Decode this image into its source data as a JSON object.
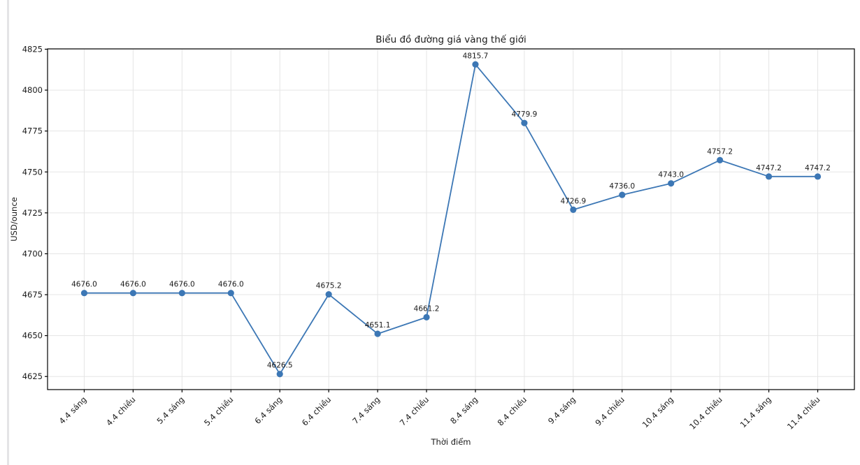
{
  "page": {
    "background": "#ffffff",
    "left_border_color": "#e4e4e6"
  },
  "chart_data": {
    "type": "line",
    "title": "Biểu đồ đường giá vàng thế giới",
    "xlabel": "Thời điểm",
    "ylabel": "USD/ounce",
    "categories": [
      "4.4 sáng",
      "4.4 chiều",
      "5.4 sáng",
      "5.4 chiều",
      "6.4 sáng",
      "6.4 chiều",
      "7.4 sáng",
      "7.4 chiều",
      "8.4 sáng",
      "8.4 chiều",
      "9.4 sáng",
      "9.4 chiều",
      "10.4 sáng",
      "10.4 chiều",
      "11.4 sáng",
      "11.4 chiều"
    ],
    "values": [
      4676.0,
      4676.0,
      4676.0,
      4676.0,
      4626.5,
      4675.2,
      4651.1,
      4661.2,
      4815.7,
      4779.9,
      4726.9,
      4736.0,
      4743.0,
      4757.2,
      4747.2,
      4747.2
    ],
    "point_labels": [
      "4676.0",
      "4676.0",
      "4676.0",
      "4676.0",
      "4626.5",
      "4675.2",
      "4651.1",
      "4661.2",
      "4815.7",
      "4779.9",
      "4726.9",
      "4736.0",
      "4743.0",
      "4757.2",
      "4747.2",
      "4747.2"
    ],
    "y_ticks": [
      4625,
      4650,
      4675,
      4700,
      4725,
      4750,
      4775,
      4800,
      4825
    ],
    "ylim": [
      4617.0,
      4825.2
    ],
    "x_tick_rotation": 45,
    "grid": true,
    "legend": "none",
    "line_color": "#3c77b5",
    "grid_color": "#e5e5e5",
    "spine_color": "#000000"
  }
}
